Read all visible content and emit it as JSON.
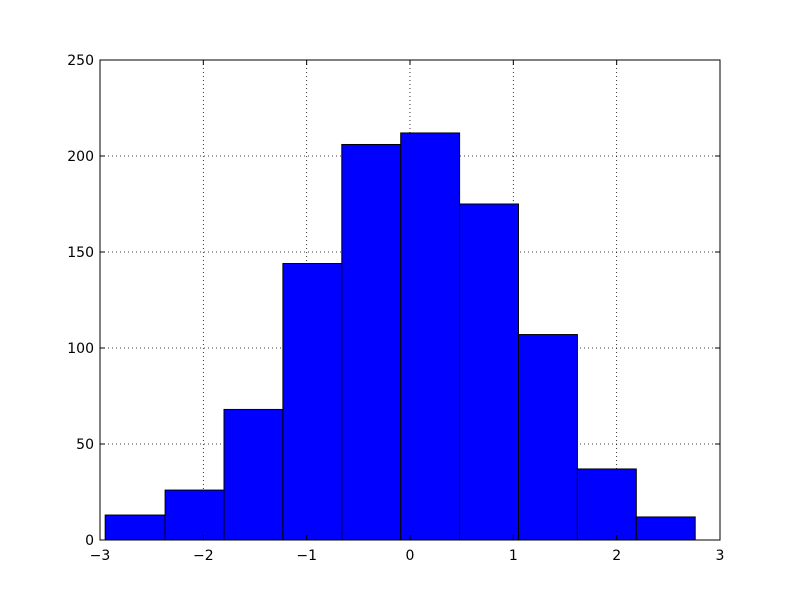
{
  "chart_data": {
    "type": "bar",
    "subtype": "histogram",
    "bins": [
      {
        "x0": -2.95,
        "x1": -2.37,
        "count": 13
      },
      {
        "x0": -2.37,
        "x1": -1.8,
        "count": 26
      },
      {
        "x0": -1.8,
        "x1": -1.23,
        "count": 68
      },
      {
        "x0": -1.23,
        "x1": -0.66,
        "count": 144
      },
      {
        "x0": -0.66,
        "x1": -0.09,
        "count": 206
      },
      {
        "x0": -0.09,
        "x1": 0.48,
        "count": 212
      },
      {
        "x0": 0.48,
        "x1": 1.05,
        "count": 175
      },
      {
        "x0": 1.05,
        "x1": 1.62,
        "count": 107
      },
      {
        "x0": 1.62,
        "x1": 2.19,
        "count": 37
      },
      {
        "x0": 2.19,
        "x1": 2.76,
        "count": 12
      }
    ],
    "xlim": [
      -3,
      3
    ],
    "ylim": [
      0,
      250
    ],
    "x_ticks": [
      "−3",
      "−2",
      "−1",
      "0",
      "1",
      "2",
      "3"
    ],
    "y_ticks": [
      "0",
      "50",
      "100",
      "150",
      "200",
      "250"
    ],
    "x_tick_values": [
      -3,
      -2,
      -1,
      0,
      1,
      2,
      3
    ],
    "y_tick_values": [
      0,
      50,
      100,
      150,
      200,
      250
    ],
    "title": "",
    "xlabel": "",
    "ylabel": "",
    "grid": true,
    "legend": "none",
    "colors": {
      "bar_fill": "#0000ff",
      "bar_edge": "#000000",
      "grid": "#000000",
      "frame": "#000000"
    }
  }
}
